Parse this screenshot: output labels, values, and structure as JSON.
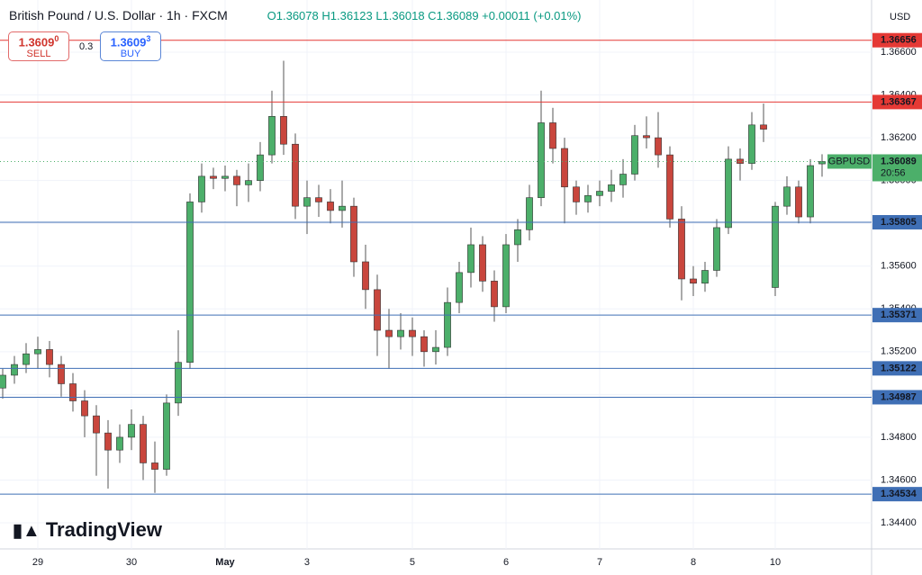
{
  "chart_data": {
    "type": "candlestick",
    "title": "British Pound / U.S. Dollar · 1h · FXCM",
    "ohlc_text": "O1.36078 H1.36123 L1.36018 C1.36089 +0.00011 (+0.01%)",
    "sell": {
      "price": "1.3609",
      "sup": "0",
      "label": "SELL"
    },
    "spread": "0.3",
    "buy": {
      "price": "1.3609",
      "sup": "3",
      "label": "BUY"
    },
    "currency": "USD",
    "symbol": "GBPUSD",
    "countdown": "20:56",
    "brand": "TradingView",
    "up_color": "#4caf6a",
    "down_color": "#c9463d",
    "open": [
      1.3503,
      1.3509,
      1.3514,
      1.3519,
      1.3521,
      1.3514,
      1.3505,
      1.3497,
      1.349,
      1.3482,
      1.3474,
      1.348,
      1.3486,
      1.3468,
      1.3465,
      1.3496,
      1.3515,
      1.359,
      1.3602,
      1.3601,
      1.3602,
      1.3598,
      1.36,
      1.3612,
      1.363,
      1.3617,
      1.3588,
      1.3592,
      1.359,
      1.3586,
      1.3588,
      1.3562,
      1.3549,
      1.353,
      1.3527,
      1.353,
      1.3527,
      1.352,
      1.3522,
      1.3543,
      1.3557,
      1.357,
      1.3553,
      1.3541,
      1.357,
      1.3577,
      1.3592,
      1.3627,
      1.3615,
      1.3597,
      1.359,
      1.3593,
      1.3595,
      1.3598,
      1.3603,
      1.3621,
      1.362,
      1.3612,
      1.3582,
      1.3554,
      1.3552,
      1.3558,
      1.3578,
      1.361,
      1.3608,
      1.3626,
      1.355,
      1.3588,
      1.3597,
      1.3583,
      1.36078
    ],
    "high": [
      1.3512,
      1.3518,
      1.3524,
      1.3527,
      1.3525,
      1.3518,
      1.351,
      1.3502,
      1.3495,
      1.3488,
      1.3486,
      1.3493,
      1.349,
      1.3478,
      1.35,
      1.353,
      1.3594,
      1.3608,
      1.3606,
      1.3607,
      1.3605,
      1.3608,
      1.3618,
      1.3642,
      1.3656,
      1.3622,
      1.36,
      1.3598,
      1.3596,
      1.36,
      1.3592,
      1.357,
      1.3556,
      1.354,
      1.3538,
      1.3536,
      1.353,
      1.353,
      1.355,
      1.3562,
      1.3578,
      1.3574,
      1.3558,
      1.3575,
      1.3582,
      1.3598,
      1.3642,
      1.3634,
      1.362,
      1.36,
      1.3598,
      1.36,
      1.3605,
      1.361,
      1.3626,
      1.363,
      1.3632,
      1.3616,
      1.3588,
      1.356,
      1.3562,
      1.3582,
      1.3616,
      1.3615,
      1.3632,
      1.3636,
      1.359,
      1.3602,
      1.36,
      1.361,
      1.36123
    ],
    "low": [
      1.3498,
      1.3505,
      1.351,
      1.3512,
      1.3508,
      1.3499,
      1.3492,
      1.348,
      1.3462,
      1.3456,
      1.3468,
      1.3474,
      1.346,
      1.3454,
      1.3462,
      1.349,
      1.3512,
      1.3585,
      1.3596,
      1.3595,
      1.3588,
      1.359,
      1.3595,
      1.3608,
      1.3612,
      1.3582,
      1.3575,
      1.3583,
      1.358,
      1.3578,
      1.3555,
      1.354,
      1.3518,
      1.3512,
      1.3521,
      1.3518,
      1.3513,
      1.3514,
      1.3518,
      1.3538,
      1.355,
      1.3548,
      1.3534,
      1.3538,
      1.3562,
      1.3572,
      1.3588,
      1.3608,
      1.358,
      1.3584,
      1.3585,
      1.3588,
      1.359,
      1.3592,
      1.36,
      1.3615,
      1.3606,
      1.3578,
      1.3544,
      1.3546,
      1.3548,
      1.3555,
      1.3575,
      1.36,
      1.3605,
      1.3618,
      1.3546,
      1.3584,
      1.358,
      1.358,
      1.36018
    ],
    "close": [
      1.3509,
      1.3514,
      1.3519,
      1.3521,
      1.3514,
      1.3505,
      1.3497,
      1.349,
      1.3482,
      1.3474,
      1.348,
      1.3486,
      1.3468,
      1.3465,
      1.3496,
      1.3515,
      1.359,
      1.3602,
      1.3601,
      1.3602,
      1.3598,
      1.36,
      1.3612,
      1.363,
      1.3617,
      1.3588,
      1.3592,
      1.359,
      1.3586,
      1.3588,
      1.3562,
      1.3549,
      1.353,
      1.3527,
      1.353,
      1.3527,
      1.352,
      1.3522,
      1.3543,
      1.3557,
      1.357,
      1.3553,
      1.3541,
      1.357,
      1.3577,
      1.3592,
      1.3627,
      1.3615,
      1.3597,
      1.359,
      1.3593,
      1.3595,
      1.3598,
      1.3603,
      1.3621,
      1.362,
      1.3612,
      1.3582,
      1.3554,
      1.3552,
      1.3558,
      1.3578,
      1.361,
      1.3608,
      1.3626,
      1.3624,
      1.3588,
      1.3597,
      1.3583,
      1.3607,
      1.36089
    ],
    "ylim": [
      1.34278,
      1.36844
    ],
    "yticks": [
      {
        "value": 1.344,
        "label": "1.34400"
      },
      {
        "value": 1.346,
        "label": "1.34600"
      },
      {
        "value": 1.348,
        "label": "1.34800"
      },
      {
        "value": 1.35,
        "label": "1.35000"
      },
      {
        "value": 1.352,
        "label": "1.35200"
      },
      {
        "value": 1.354,
        "label": "1.35400"
      },
      {
        "value": 1.356,
        "label": "1.35600"
      },
      {
        "value": 1.358,
        "label": "1.35800"
      },
      {
        "value": 1.36,
        "label": "1.36000"
      },
      {
        "value": 1.362,
        "label": "1.36200"
      },
      {
        "value": 1.364,
        "label": "1.36400"
      },
      {
        "value": 1.366,
        "label": "1.36600"
      }
    ],
    "xlim": [
      -0.23,
      74.23
    ],
    "xticks": [
      {
        "value": 3,
        "label": "29"
      },
      {
        "value": 11,
        "label": "30"
      },
      {
        "value": 19,
        "label": "May"
      },
      {
        "value": 26,
        "label": "3"
      },
      {
        "value": 35,
        "label": "5"
      },
      {
        "value": 43,
        "label": "6"
      },
      {
        "value": 51,
        "label": "7"
      },
      {
        "value": 59,
        "label": "8"
      },
      {
        "value": 66,
        "label": "10"
      }
    ],
    "hlines": [
      {
        "value": 1.36656,
        "color": "#e53935"
      },
      {
        "value": 1.36367,
        "color": "#e53935"
      },
      {
        "value": 1.35805,
        "color": "#3f6fb5"
      },
      {
        "value": 1.35371,
        "color": "#3f6fb5"
      },
      {
        "value": 1.35122,
        "color": "#3f6fb5"
      },
      {
        "value": 1.34987,
        "color": "#3f6fb5"
      },
      {
        "value": 1.34534,
        "color": "#3f6fb5"
      }
    ]
  }
}
